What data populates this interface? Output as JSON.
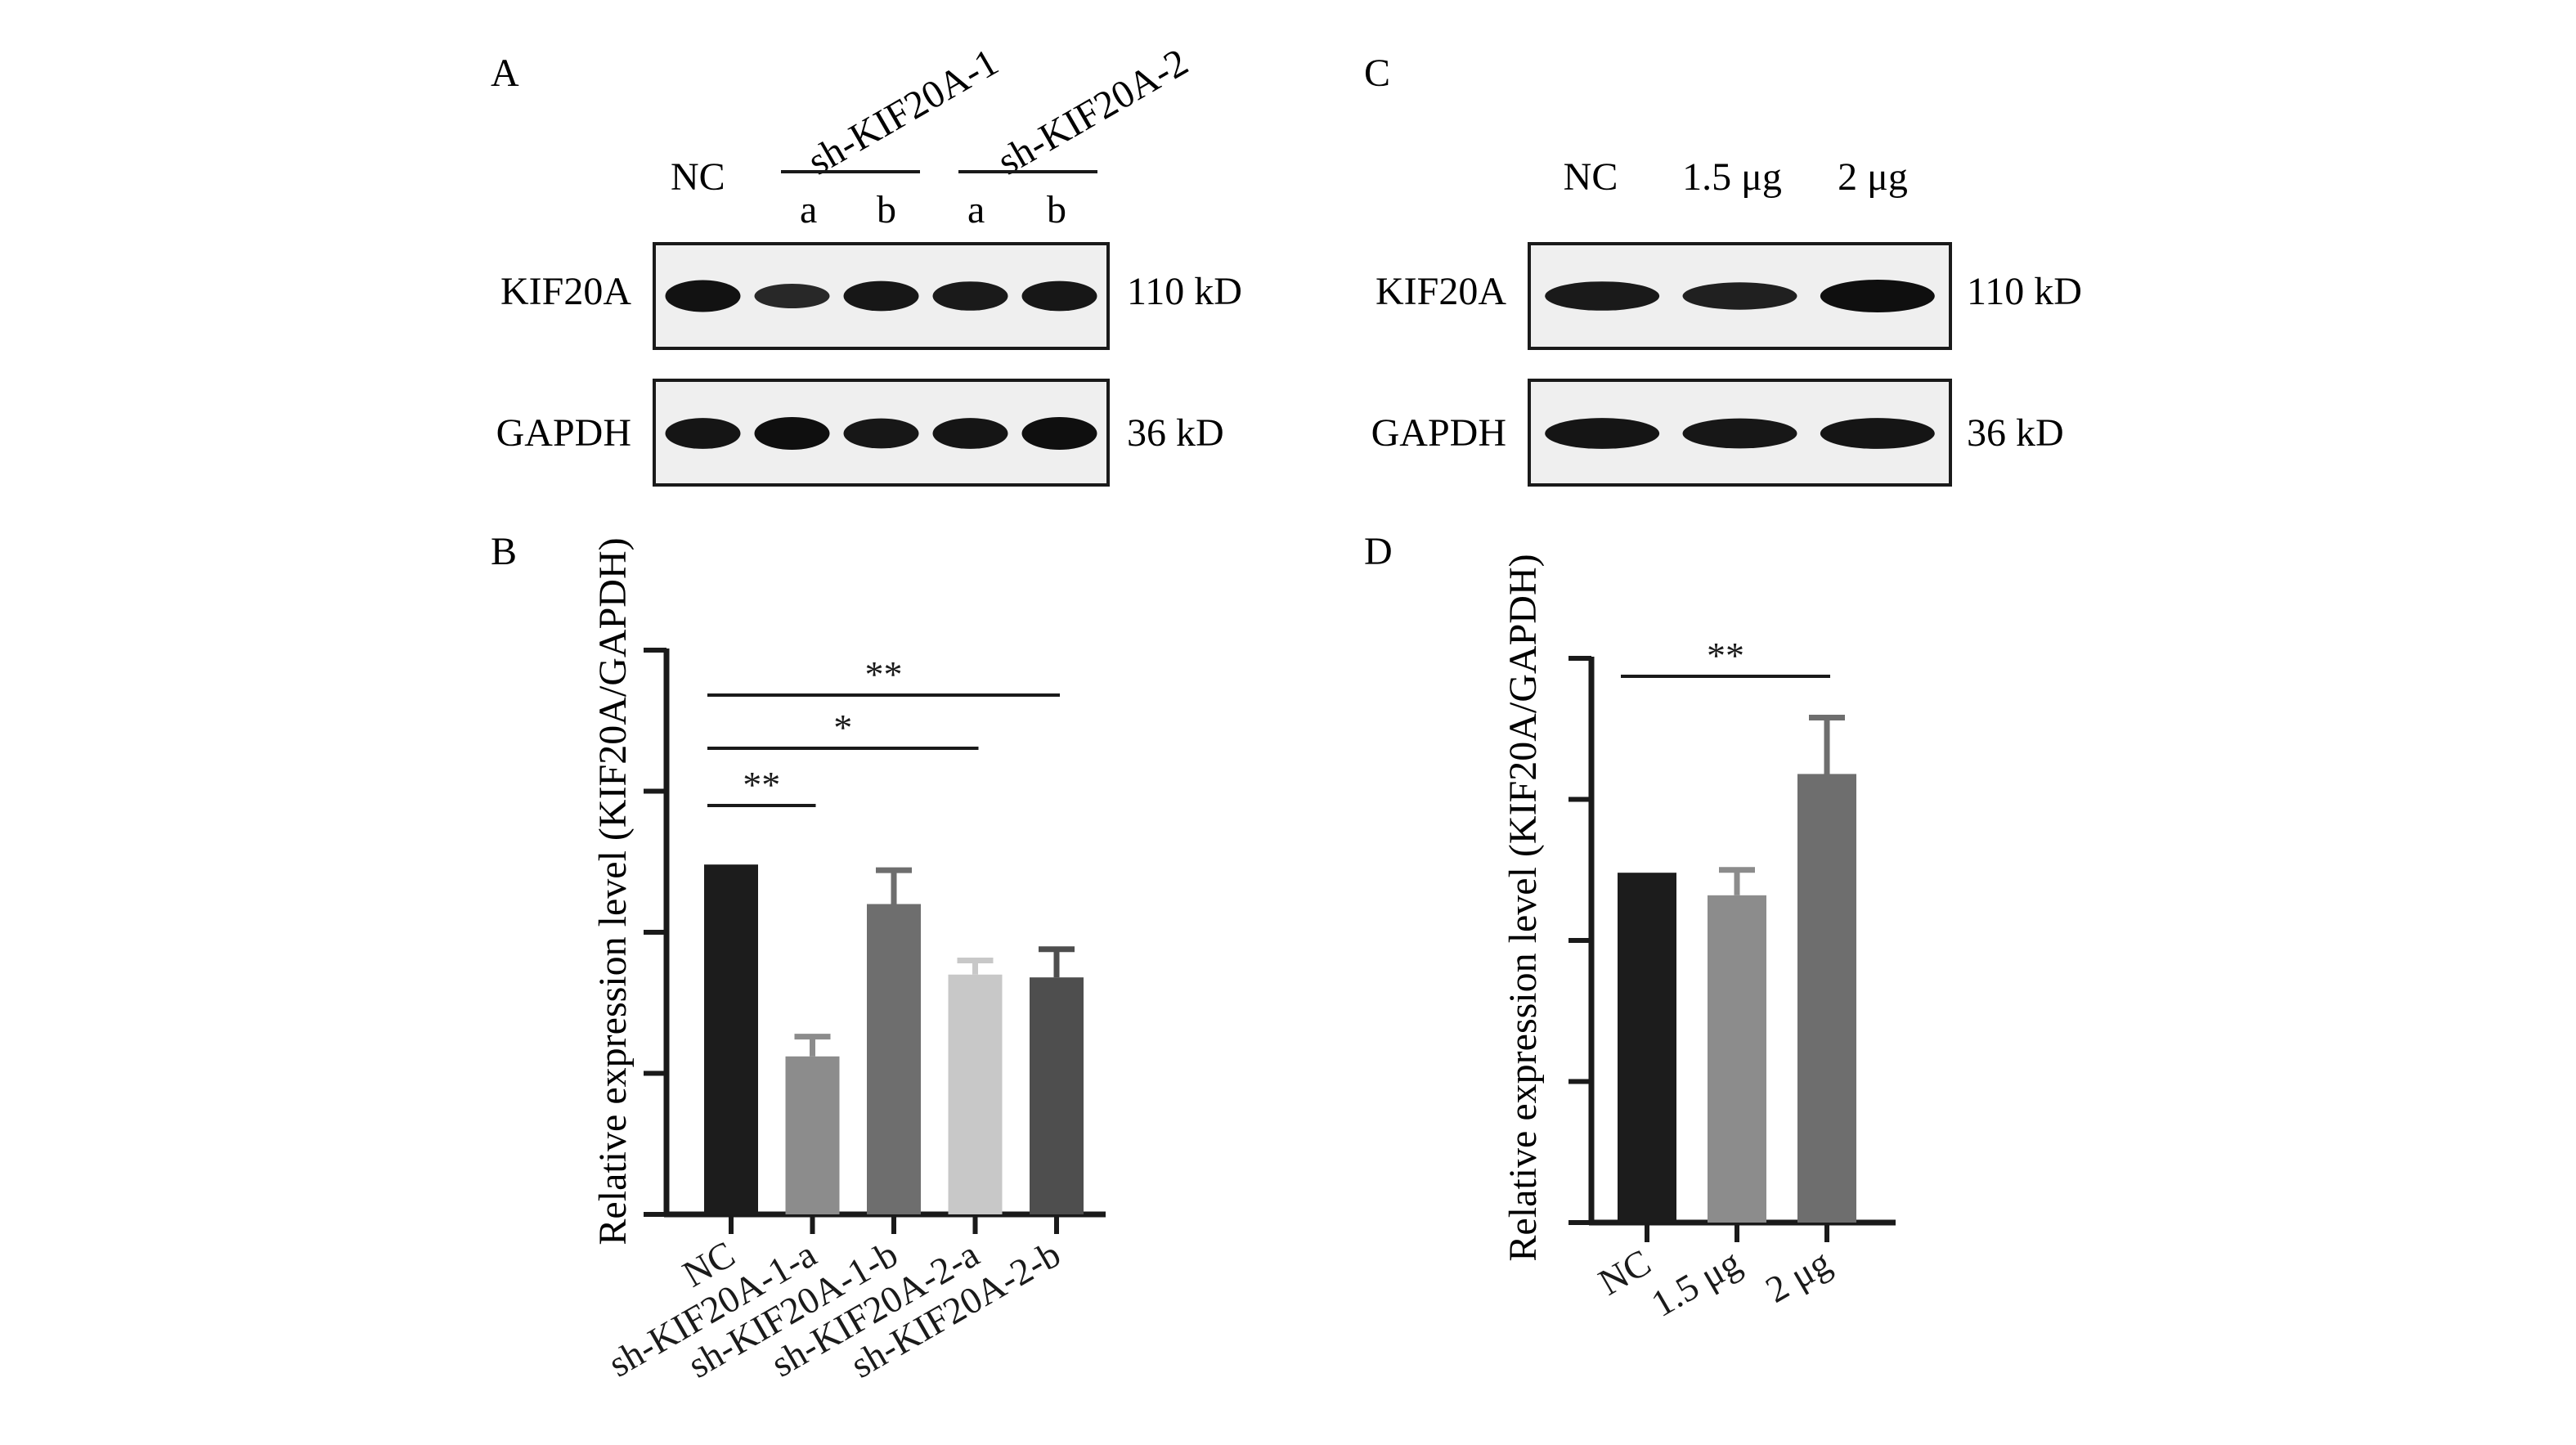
{
  "panels": {
    "A": {
      "letter": "A",
      "nc_label": "NC",
      "group1_label": "sh-KIF20A-1",
      "group2_label": "sh-KIF20A-2",
      "sub_labels": [
        "a",
        "b",
        "a",
        "b"
      ],
      "blots": [
        {
          "protein": "KIF20A",
          "size": "110 kD",
          "intensities": [
            0.95,
            0.55,
            0.85,
            0.8,
            0.85
          ]
        },
        {
          "protein": "GAPDH",
          "size": "36 kD",
          "intensities": [
            0.9,
            1.0,
            0.85,
            0.9,
            1.0
          ]
        }
      ]
    },
    "C": {
      "letter": "C",
      "lane_labels": [
        "NC",
        "1.5 μg",
        "2 μg"
      ],
      "blots": [
        {
          "protein": "KIF20A",
          "size": "110 kD",
          "intensities": [
            0.8,
            0.7,
            1.0
          ]
        },
        {
          "protein": "GAPDH",
          "size": "36 kD",
          "intensities": [
            0.9,
            0.85,
            0.9
          ]
        }
      ]
    },
    "B": {
      "letter": "B"
    },
    "D": {
      "letter": "D"
    }
  },
  "chart_data": [
    {
      "panel": "B",
      "type": "bar",
      "ylabel": "Relative expression level (KIF20A/GAPDH)",
      "ylim": [
        0,
        2.0
      ],
      "yticks": [
        0,
        0.5,
        1.0,
        1.5,
        2.0
      ],
      "ytick_labels_shown": false,
      "categories": [
        "NC",
        "sh-KIF20A-1-a",
        "sh-KIF20A-1-b",
        "sh-KIF20A-2-a",
        "sh-KIF20A-2-b"
      ],
      "values": [
        1.24,
        0.56,
        1.1,
        0.85,
        0.84
      ],
      "errors": [
        0.0,
        0.07,
        0.12,
        0.05,
        0.1
      ],
      "colors": [
        "#1c1c1c",
        "#8c8c8c",
        "#6e6e6e",
        "#c8c8c8",
        "#4e4e4e"
      ],
      "significance": [
        {
          "from": "NC",
          "to": "sh-KIF20A-1-a",
          "label": "**"
        },
        {
          "from": "NC",
          "to": "sh-KIF20A-2-a",
          "label": "*"
        },
        {
          "from": "NC",
          "to": "sh-KIF20A-2-b",
          "label": "**"
        }
      ]
    },
    {
      "panel": "D",
      "type": "bar",
      "ylabel": "Relative expression level (KIF20A/GAPDH)",
      "ylim": [
        0,
        2.0
      ],
      "yticks": [
        0,
        0.5,
        1.0,
        1.5,
        2.0
      ],
      "ytick_labels_shown": false,
      "categories": [
        "NC",
        "1.5 μg",
        "2 μg"
      ],
      "values": [
        1.24,
        1.16,
        1.59
      ],
      "errors": [
        0.0,
        0.09,
        0.2
      ],
      "colors": [
        "#1c1c1c",
        "#8c8c8c",
        "#6e6e6e"
      ],
      "significance": [
        {
          "from": "NC",
          "to": "2 μg",
          "label": "**"
        }
      ]
    }
  ]
}
